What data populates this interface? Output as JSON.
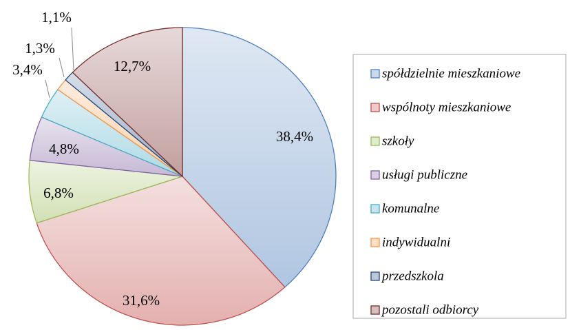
{
  "chart_data": {
    "type": "pie",
    "categories": [
      "spółdzielnie mieszkaniowe",
      "wspólnoty mieszkaniowe",
      "szkoły",
      "usługi publiczne",
      "komunalne",
      "indywidualni",
      "przedszkola",
      "pozostali odbiorcy"
    ],
    "values": [
      38.4,
      31.6,
      6.8,
      4.8,
      3.4,
      1.3,
      1.1,
      12.7
    ],
    "value_labels": [
      "38,4%",
      "31,6%",
      "6,8%",
      "4,8%",
      "3,4%",
      "1,3%",
      "1,1%",
      "12,7%"
    ],
    "colors": [
      "#4f81bd",
      "#c0504d",
      "#9bbb59",
      "#8064a2",
      "#4bacc6",
      "#f79646",
      "#1f497d",
      "#772c2a"
    ],
    "legend": "right"
  }
}
